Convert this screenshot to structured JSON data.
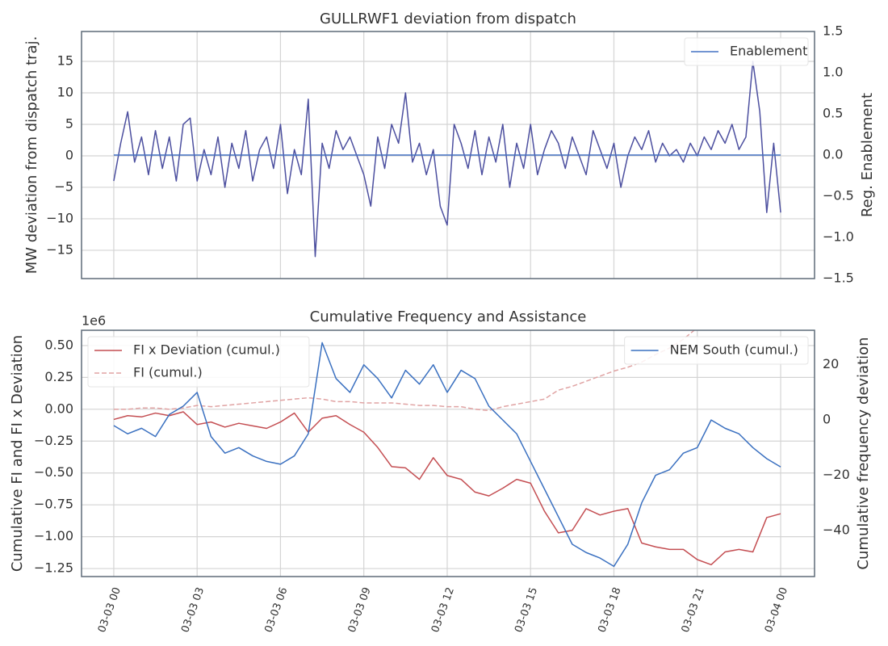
{
  "chart_data": [
    {
      "type": "line",
      "title": "GULLRWF1 deviation from dispatch",
      "ylabel": "MW deviation from dispatch traj.",
      "y2label": "Reg. Enablement",
      "x": [
        0,
        0.25,
        0.5,
        0.75,
        1,
        1.25,
        1.5,
        1.75,
        2,
        2.25,
        2.5,
        2.75,
        3,
        3.25,
        3.5,
        3.75,
        4,
        4.25,
        4.5,
        4.75,
        5,
        5.25,
        5.5,
        5.75,
        6,
        6.25,
        6.5,
        6.75,
        7,
        7.25,
        7.5,
        7.75,
        8,
        8.25,
        8.5,
        8.75,
        9,
        9.25,
        9.5,
        9.75,
        10,
        10.25,
        10.5,
        10.75,
        11,
        11.25,
        11.5,
        11.75,
        12,
        12.25,
        12.5,
        12.75,
        13,
        13.25,
        13.5,
        13.75,
        14,
        14.25,
        14.5,
        14.75,
        15,
        15.25,
        15.5,
        15.75,
        16,
        16.25,
        16.5,
        16.75,
        17,
        17.25,
        17.5,
        17.75,
        18,
        18.25,
        18.5,
        18.75,
        19,
        19.25,
        19.5,
        19.75,
        20,
        20.25,
        20.5,
        20.75,
        21,
        21.25,
        21.5,
        21.75,
        22,
        22.25,
        22.5,
        22.75,
        23,
        23.25,
        23.5,
        23.75,
        24
      ],
      "series": [
        {
          "color": "#4c4f9f",
          "values": [
            -4,
            2,
            7,
            -1,
            3,
            -3,
            4,
            -2,
            3,
            -4,
            5,
            6,
            -4,
            1,
            -3,
            3,
            -5,
            2,
            -2,
            4,
            -4,
            1,
            3,
            -2,
            5,
            -6,
            1,
            -3,
            9,
            -16,
            2,
            -2,
            4,
            1,
            3,
            0,
            -3,
            -8,
            3,
            -2,
            5,
            2,
            10,
            -1,
            2,
            -3,
            1,
            -8,
            -11,
            5,
            2,
            -2,
            4,
            -3,
            3,
            -1,
            5,
            -5,
            2,
            -2,
            5,
            -3,
            1,
            4,
            2,
            -2,
            3,
            0,
            -3,
            4,
            1,
            -2,
            2,
            -5,
            0,
            3,
            1,
            4,
            -1,
            2,
            0,
            1,
            -1,
            2,
            0,
            3,
            1,
            4,
            2,
            5,
            1,
            3,
            15,
            7,
            -9,
            2,
            -9
          ]
        },
        {
          "name": "Enablement",
          "color": "#4472c4",
          "axis": "y2",
          "x": [
            0,
            24
          ],
          "values": [
            0,
            0
          ]
        }
      ],
      "xlim": [
        -1.16,
        25.22
      ],
      "xticks": [
        0,
        3,
        6,
        9,
        12,
        15,
        18,
        21,
        24
      ],
      "show_xtick_labels": false,
      "ylim": [
        -19.5,
        19.75
      ],
      "yticks": [
        {
          "value": -15,
          "label": "−15"
        },
        {
          "value": -10,
          "label": "−10"
        },
        {
          "value": -5,
          "label": "−5"
        },
        0,
        5,
        10,
        15
      ],
      "y2lim": [
        -1.5,
        1.5
      ],
      "y2ticks": [
        {
          "value": -1.5,
          "label": "−1.5"
        },
        {
          "value": -1.0,
          "label": "−1.0"
        },
        {
          "value": -0.5,
          "label": "−0.5"
        },
        {
          "value": 0,
          "label": "0.0"
        },
        {
          "value": 0.5,
          "label": "0.5"
        },
        {
          "value": 1.0,
          "label": "1.0"
        },
        {
          "value": 1.5,
          "label": "1.5"
        }
      ],
      "grid": true,
      "y2_legend": "upper right"
    },
    {
      "type": "line",
      "title": "Cumulative Frequency and Assistance",
      "ylabel": "Cumulative FI and FI x Deviation",
      "y2label": "Cumulative frequency deviation",
      "y_offset_label": "1e6",
      "x": [
        0,
        0.5,
        1,
        1.5,
        2,
        2.5,
        3,
        3.5,
        4,
        4.5,
        5,
        5.5,
        6,
        6.5,
        7,
        7.5,
        8,
        8.5,
        9,
        9.5,
        10,
        10.5,
        11,
        11.5,
        12,
        12.5,
        13,
        13.5,
        14,
        14.5,
        15,
        15.5,
        16,
        16.5,
        17,
        17.5,
        18,
        18.5,
        19,
        19.5,
        20,
        20.5,
        21,
        21.5,
        22,
        22.5,
        23,
        23.5,
        24
      ],
      "series": [
        {
          "name": "FI x Deviation (cumul.)",
          "color": "#c44e52",
          "values": [
            -0.08,
            -0.05,
            -0.06,
            -0.03,
            -0.05,
            -0.02,
            -0.12,
            -0.1,
            -0.14,
            -0.11,
            -0.13,
            -0.15,
            -0.1,
            -0.03,
            -0.18,
            -0.07,
            -0.05,
            -0.12,
            -0.18,
            -0.3,
            -0.45,
            -0.46,
            -0.55,
            -0.38,
            -0.52,
            -0.55,
            -0.65,
            -0.68,
            -0.62,
            -0.55,
            -0.58,
            -0.8,
            -0.97,
            -0.95,
            -0.78,
            -0.83,
            -0.8,
            -0.78,
            -1.05,
            -1.08,
            -1.1,
            -1.1,
            -1.18,
            -1.22,
            -1.12,
            -1.1,
            -1.12,
            -0.85,
            -0.82
          ]
        },
        {
          "name": "FI (cumul.)",
          "color": "#e0a3a3",
          "linestyle": "dashed",
          "values": [
            0,
            0,
            0.01,
            0.01,
            0,
            0.01,
            0.03,
            0.02,
            0.03,
            0.04,
            0.05,
            0.06,
            0.07,
            0.08,
            0.09,
            0.08,
            0.06,
            0.06,
            0.05,
            0.05,
            0.05,
            0.04,
            0.03,
            0.03,
            0.02,
            0.02,
            0,
            -0.01,
            0.02,
            0.04,
            0.06,
            0.08,
            0.15,
            0.18,
            0.22,
            0.26,
            0.3,
            0.33,
            0.37,
            0.43,
            0.48,
            0.55,
            0.64,
            null,
            null,
            null,
            null,
            null,
            null
          ]
        },
        {
          "name": "NEM South (cumul.)",
          "color": "#3a70c0",
          "axis": "y2",
          "values": [
            -2,
            -5,
            -3,
            -6,
            2,
            5,
            10,
            -6,
            -12,
            -10,
            -13,
            -15,
            -16,
            -13,
            -5,
            28,
            15,
            10,
            20,
            15,
            8,
            18,
            13,
            20,
            10,
            18,
            15,
            5,
            0,
            -5,
            -15,
            -25,
            -35,
            -45,
            -48,
            -50,
            -53,
            -45,
            -30,
            -20,
            -18,
            -12,
            -10,
            0,
            -3,
            -5,
            -10,
            -14,
            -17
          ]
        }
      ],
      "xlim": [
        -1.16,
        25.22
      ],
      "xticks": [
        {
          "value": 0,
          "label": "03-03 00"
        },
        {
          "value": 3,
          "label": "03-03 03"
        },
        {
          "value": 6,
          "label": "03-03 06"
        },
        {
          "value": 9,
          "label": "03-03 09"
        },
        {
          "value": 12,
          "label": "03-03 12"
        },
        {
          "value": 15,
          "label": "03-03 15"
        },
        {
          "value": 18,
          "label": "03-03 18"
        },
        {
          "value": 21,
          "label": "03-03 21"
        },
        {
          "value": 24,
          "label": "03-04 00"
        }
      ],
      "ylim": [
        -1.313,
        0.62
      ],
      "yticks": [
        {
          "value": -1.25,
          "label": "−1.25"
        },
        {
          "value": -1.0,
          "label": "−1.00"
        },
        {
          "value": -0.75,
          "label": "−0.75"
        },
        {
          "value": -0.5,
          "label": "−0.50"
        },
        {
          "value": -0.25,
          "label": "−0.25"
        },
        {
          "value": 0,
          "label": "0.00"
        },
        {
          "value": 0.25,
          "label": "0.25"
        },
        {
          "value": 0.5,
          "label": "0.50"
        }
      ],
      "y2lim": [
        -56.7,
        32.5
      ],
      "y2ticks": [
        {
          "value": -40,
          "label": "−40"
        },
        {
          "value": -20,
          "label": "−20"
        },
        0,
        20
      ],
      "grid": true,
      "legend": "upper left",
      "y2_legend": "upper right"
    }
  ]
}
